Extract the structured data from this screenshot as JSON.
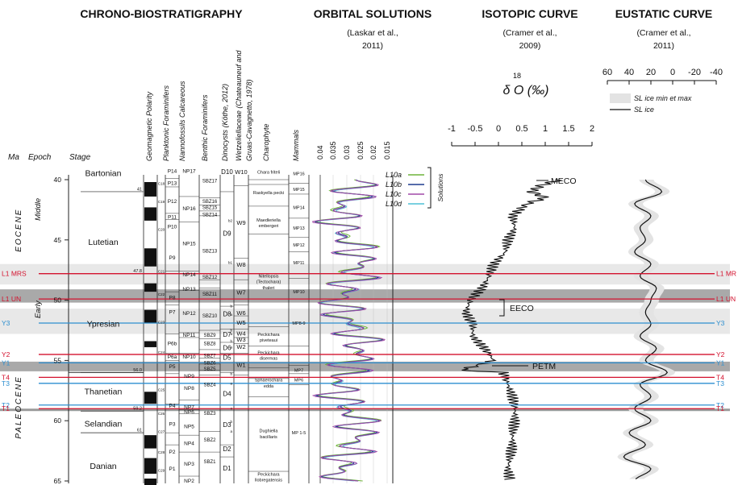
{
  "headers": {
    "chrono": "CHRONO-BIOSTRATIGRAPHY",
    "orbital": "ORBITAL SOLUTIONS",
    "orbital_src_1": "(Laskar et al.,",
    "orbital_src_2": "2011)",
    "isotopic": "ISOTOPIC CURVE",
    "isotopic_src_1": "(Cramer et al.,",
    "isotopic_src_2": "2009)",
    "eustatic": "EUSTATIC CURVE",
    "eustatic_src_1": "(Cramer et al.,",
    "eustatic_src_2": "2011)"
  },
  "columns": {
    "ma": "Ma",
    "epoch": "Epoch",
    "stage": "Stage",
    "geomagnetic": "Geomagnetic Polarity",
    "planktonic": "Planktonic Foraminifers",
    "nannofossils": "Nannofossils Calcareous",
    "benthic": "Benthic Foraminifers",
    "dinocysts": "Dinocysts (Köthe, 2012)",
    "wetzeliellaceae_1": "Wetzeliellaceae (Chateauneuf and",
    "wetzeliellaceae_2": "Gruas-Cavagnetto, 1978)",
    "charophyte": "Charophyte",
    "mammals": "Mammals"
  },
  "age_ticks": [
    "40",
    "45",
    "50",
    "55",
    "60",
    "65"
  ],
  "epochs": [
    "EOCENE",
    "PALEOCENE"
  ],
  "subepochs": [
    "Middle",
    "Early"
  ],
  "stages": [
    "Bartonian",
    "Lutetian",
    "Ypresian",
    "Thanetian",
    "Selandian",
    "Danian"
  ],
  "stage_boundary_ages": [
    "41",
    "47.8",
    "56.0",
    "59.2",
    "61"
  ],
  "chrons": [
    "C18",
    "C19",
    "C20",
    "C21",
    "C22",
    "C23",
    "C24",
    "C25",
    "C26",
    "C27",
    "C28",
    "C29"
  ],
  "planktonic": [
    "P14",
    "P13",
    "P12",
    "P11",
    "P10",
    "P9",
    "P8",
    "P7",
    "P6b",
    "P6a",
    "P5",
    "P4",
    "P3",
    "P2",
    "P1"
  ],
  "nannofossils": [
    "NP17",
    "NP16",
    "NP15",
    "NP14",
    "NP13",
    "NP12",
    "NP11",
    "NP10",
    "NP9",
    "NP8",
    "NP7",
    "NP6",
    "NP5",
    "NP4",
    "NP3",
    "NP2"
  ],
  "benthic": [
    "SBZ17",
    "SBZ16",
    "SBZ15",
    "SBZ14",
    "SBZ13",
    "SBZ12",
    "SBZ11",
    "SBZ10",
    "SBZ9",
    "SBZ8",
    "SBZ7",
    "SBZ6",
    "SBZ5",
    "SBZ4",
    "SBZ3",
    "SBZ2",
    "SBZ1"
  ],
  "dinocysts": [
    "D10",
    "D9",
    "D8",
    "D7",
    "D6",
    "D5",
    "D4",
    "D3",
    "D2",
    "D1"
  ],
  "dino_sub": [
    "b2",
    "b1",
    "b",
    "a",
    "b",
    "a",
    "b",
    "a",
    "b",
    "a",
    "c",
    "b",
    "a"
  ],
  "wetzel": [
    "W10",
    "W9",
    "W8",
    "W7",
    "W6",
    "W5",
    "W4",
    "W3",
    "W2",
    "W1"
  ],
  "charophytes": [
    [
      "Chara friteli"
    ],
    [
      "Raskyella pecki"
    ],
    [
      "Maedleriella",
      "embergeri"
    ],
    [
      "Nitellopsis",
      "(Tectochara)",
      "thaleri"
    ],
    [
      "Peckichara",
      "piveteaui"
    ],
    [
      "Peckichara",
      "disermas"
    ],
    [
      "Sphaerochara",
      "edda"
    ],
    [
      "Dughiella",
      "bacillaris"
    ],
    [
      "Peckichara",
      "llobregatensis"
    ]
  ],
  "mammals": [
    "MP16",
    "MP15",
    "MP14",
    "MP13",
    "MP12",
    "MP11",
    "MP10",
    "MP8-9",
    "MP7",
    "MP6",
    "MP 1-5"
  ],
  "orbital": {
    "ticks": [
      "0.04",
      "0.035",
      "0.03",
      "0.025",
      "0.02",
      "0.015"
    ],
    "legend": [
      "L10a",
      "L10b",
      "L10c",
      "L10d"
    ],
    "legend_colors": [
      "#6fb43a",
      "#1f3c8f",
      "#a24aa8",
      "#4fc0d6"
    ],
    "group": "Solutions"
  },
  "isotopic": {
    "axis_label": "δ O (‰)",
    "superscript": "18",
    "ticks": [
      "-1",
      "-0.5",
      "0",
      "0.5",
      "1",
      "1.5",
      "2"
    ],
    "annotations": [
      "MECO",
      "EECO",
      "PETM"
    ]
  },
  "eustatic": {
    "ticks": [
      "60",
      "40",
      "20",
      "0",
      "-20",
      "-40"
    ],
    "legend": [
      "SL ice min et max",
      "SL ice"
    ]
  },
  "events": {
    "left": [
      "L1 MRS",
      "L1 UN",
      "Y3",
      "Y2",
      "Y1",
      "T4",
      "T3",
      "T2",
      "T1"
    ],
    "right": [
      "L1 MR",
      "L1 UN",
      "Y3",
      "Y2",
      "Y1",
      "T4",
      "T3",
      "T2",
      "T1"
    ],
    "colors": [
      "#d3122e",
      "#d3122e",
      "#2d8fd0",
      "#d3122e",
      "#2d8fd0",
      "#d3122e",
      "#2d8fd0",
      "#2d8fd0",
      "#d3122e"
    ]
  }
}
